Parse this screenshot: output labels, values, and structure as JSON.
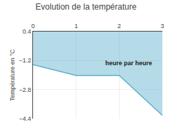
{
  "chart_data": {
    "type": "area",
    "title": "Evolution de la température",
    "ylabel": "Température en °C",
    "x": [
      0,
      1,
      2,
      3
    ],
    "values": [
      -1.42,
      -2.02,
      -2.02,
      -4.22
    ],
    "fill_top": 0.4,
    "color": "#5ab0cc",
    "xlim": [
      0,
      3
    ],
    "xticks": [
      0,
      1,
      2,
      3
    ],
    "ylim": [
      -4.4,
      0.4
    ],
    "yticks": [
      0.4,
      -1.2,
      -2.8,
      -4.4
    ],
    "grid": true,
    "annotations": [
      {
        "x": 1.65,
        "y": -1.35,
        "text": "heure par heure"
      }
    ]
  }
}
